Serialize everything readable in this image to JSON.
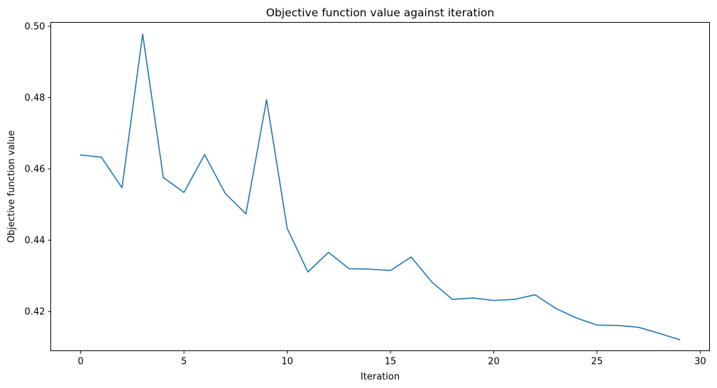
{
  "chart_data": {
    "type": "line",
    "title": "Objective function value against iteration",
    "xlabel": "Iteration",
    "ylabel": "Objective function value",
    "xlim": [
      -1.45,
      30.45
    ],
    "ylim": [
      0.409,
      0.5011
    ],
    "xticks": [
      0,
      5,
      10,
      15,
      20,
      25,
      30
    ],
    "yticks": [
      0.42,
      0.44,
      0.46,
      0.48,
      0.5
    ],
    "xtick_labels": [
      "0",
      "5",
      "10",
      "15",
      "20",
      "25",
      "30"
    ],
    "ytick_labels": [
      "0.42",
      "0.44",
      "0.46",
      "0.48",
      "0.50"
    ],
    "grid": false,
    "color": "#1f77b4",
    "series": [
      {
        "x": [
          0,
          1,
          2,
          3,
          4,
          5,
          6,
          7,
          8,
          9,
          10,
          11,
          12,
          13,
          14,
          15,
          16,
          17,
          18,
          19,
          20,
          21,
          22,
          23,
          24,
          25,
          26,
          27,
          28,
          29
        ],
        "y": [
          0.4639,
          0.4633,
          0.4547,
          0.4978,
          0.4576,
          0.4534,
          0.464,
          0.4531,
          0.4474,
          0.4794,
          0.4433,
          0.4311,
          0.4366,
          0.432,
          0.4319,
          0.4315,
          0.4353,
          0.4283,
          0.4234,
          0.4238,
          0.4231,
          0.4234,
          0.4247,
          0.4209,
          0.4182,
          0.4162,
          0.4161,
          0.4156,
          0.4139,
          0.4121
        ]
      }
    ]
  }
}
